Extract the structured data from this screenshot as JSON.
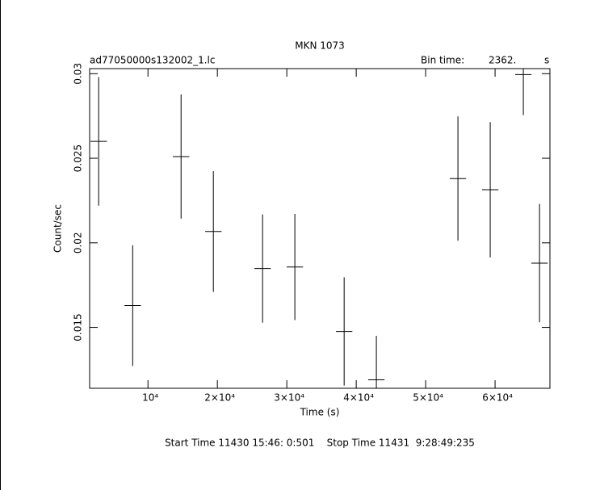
{
  "chart_data": {
    "type": "errorbar",
    "title": "MKN 1073",
    "file_label": "ad77050000s132002_1.lc",
    "bin_label": "Bin time:",
    "bin_value": "2362.",
    "bin_unit": "s",
    "xlabel": "Time (s)",
    "ylabel": "Count/sec",
    "footer": "Start Time 11430 15:46: 0:501    Stop Time 11431  9:28:49:235",
    "xlim": [
      1600,
      67900
    ],
    "ylim": [
      0.0114,
      0.0303
    ],
    "xticks": [
      {
        "value": 10000,
        "label": "10⁴"
      },
      {
        "value": 20000,
        "label": "2×10⁴"
      },
      {
        "value": 30000,
        "label": "3×10⁴"
      },
      {
        "value": 40000,
        "label": "4×10⁴"
      },
      {
        "value": 50000,
        "label": "5×10⁴"
      },
      {
        "value": 60000,
        "label": "6×10⁴"
      }
    ],
    "yticks": [
      0.015,
      0.02,
      0.025,
      0.03
    ],
    "x": [
      2900,
      7800,
      14770,
      19420,
      26510,
      31160,
      38260,
      42900,
      54650,
      59300,
      64070,
      66400
    ],
    "xerr": 1181,
    "series": [
      {
        "color": "#000000",
        "values": [
          0.026,
          0.01629,
          0.0251,
          0.02067,
          0.01848,
          0.01857,
          0.01476,
          0.0119,
          0.0238,
          0.02314,
          0.02995,
          0.0188
        ],
        "errors": [
          0.0038,
          0.00357,
          0.00367,
          0.00357,
          0.0032,
          0.00314,
          0.0032,
          0.0026,
          0.00367,
          0.004,
          0.0024,
          0.0035
        ]
      }
    ]
  }
}
